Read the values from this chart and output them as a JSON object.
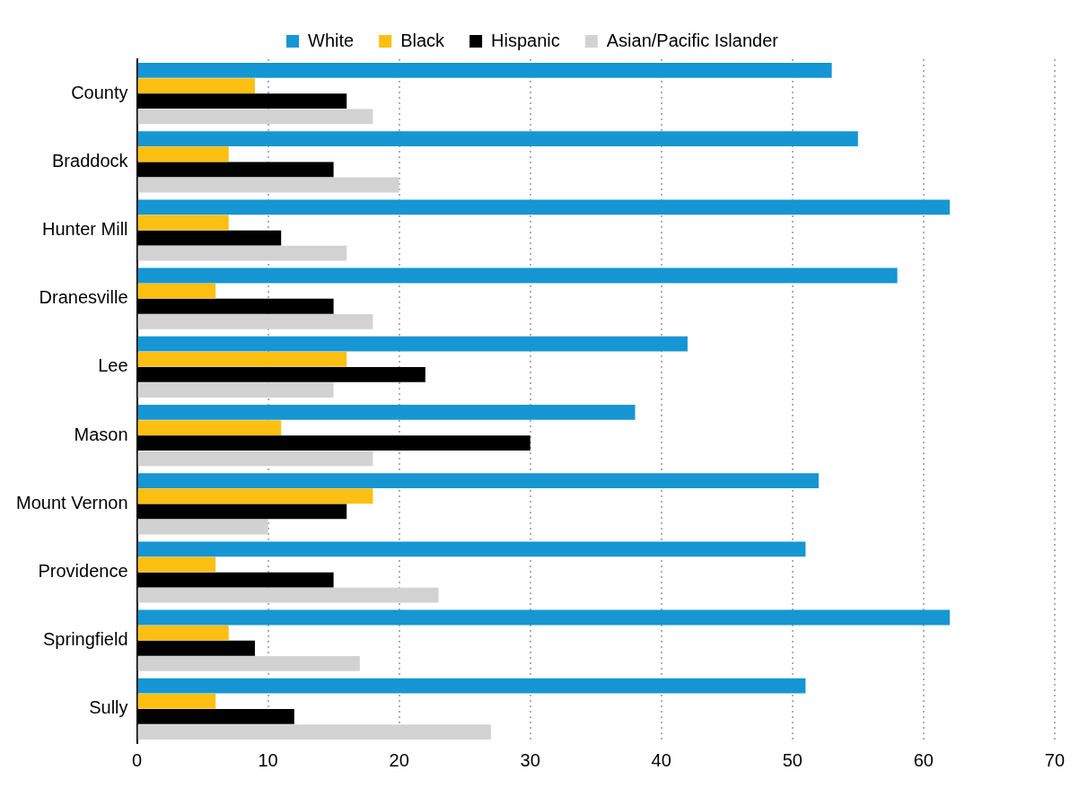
{
  "chart_data": {
    "type": "bar",
    "orientation": "horizontal",
    "categories": [
      "County",
      "Braddock",
      "Hunter Mill",
      "Dranesville",
      "Lee",
      "Mason",
      "Mount Vernon",
      "Providence",
      "Springfield",
      "Sully"
    ],
    "series": [
      {
        "name": "White",
        "color": "#1696d2",
        "values": [
          53,
          55,
          62,
          58,
          42,
          38,
          52,
          51,
          62,
          51
        ]
      },
      {
        "name": "Black",
        "color": "#fdbf11",
        "values": [
          9,
          7,
          7,
          6,
          16,
          11,
          18,
          6,
          7,
          6
        ]
      },
      {
        "name": "Hispanic",
        "color": "#000000",
        "values": [
          16,
          15,
          11,
          15,
          22,
          30,
          16,
          15,
          9,
          12
        ]
      },
      {
        "name": "Asian/Pacific Islander",
        "color": "#d2d2d2",
        "values": [
          18,
          20,
          16,
          18,
          15,
          18,
          10,
          23,
          17,
          27
        ]
      }
    ],
    "xlim": [
      0,
      70
    ],
    "xticks": [
      0,
      10,
      20,
      30,
      40,
      50,
      60,
      70
    ],
    "grid": "x",
    "legend": "top"
  }
}
